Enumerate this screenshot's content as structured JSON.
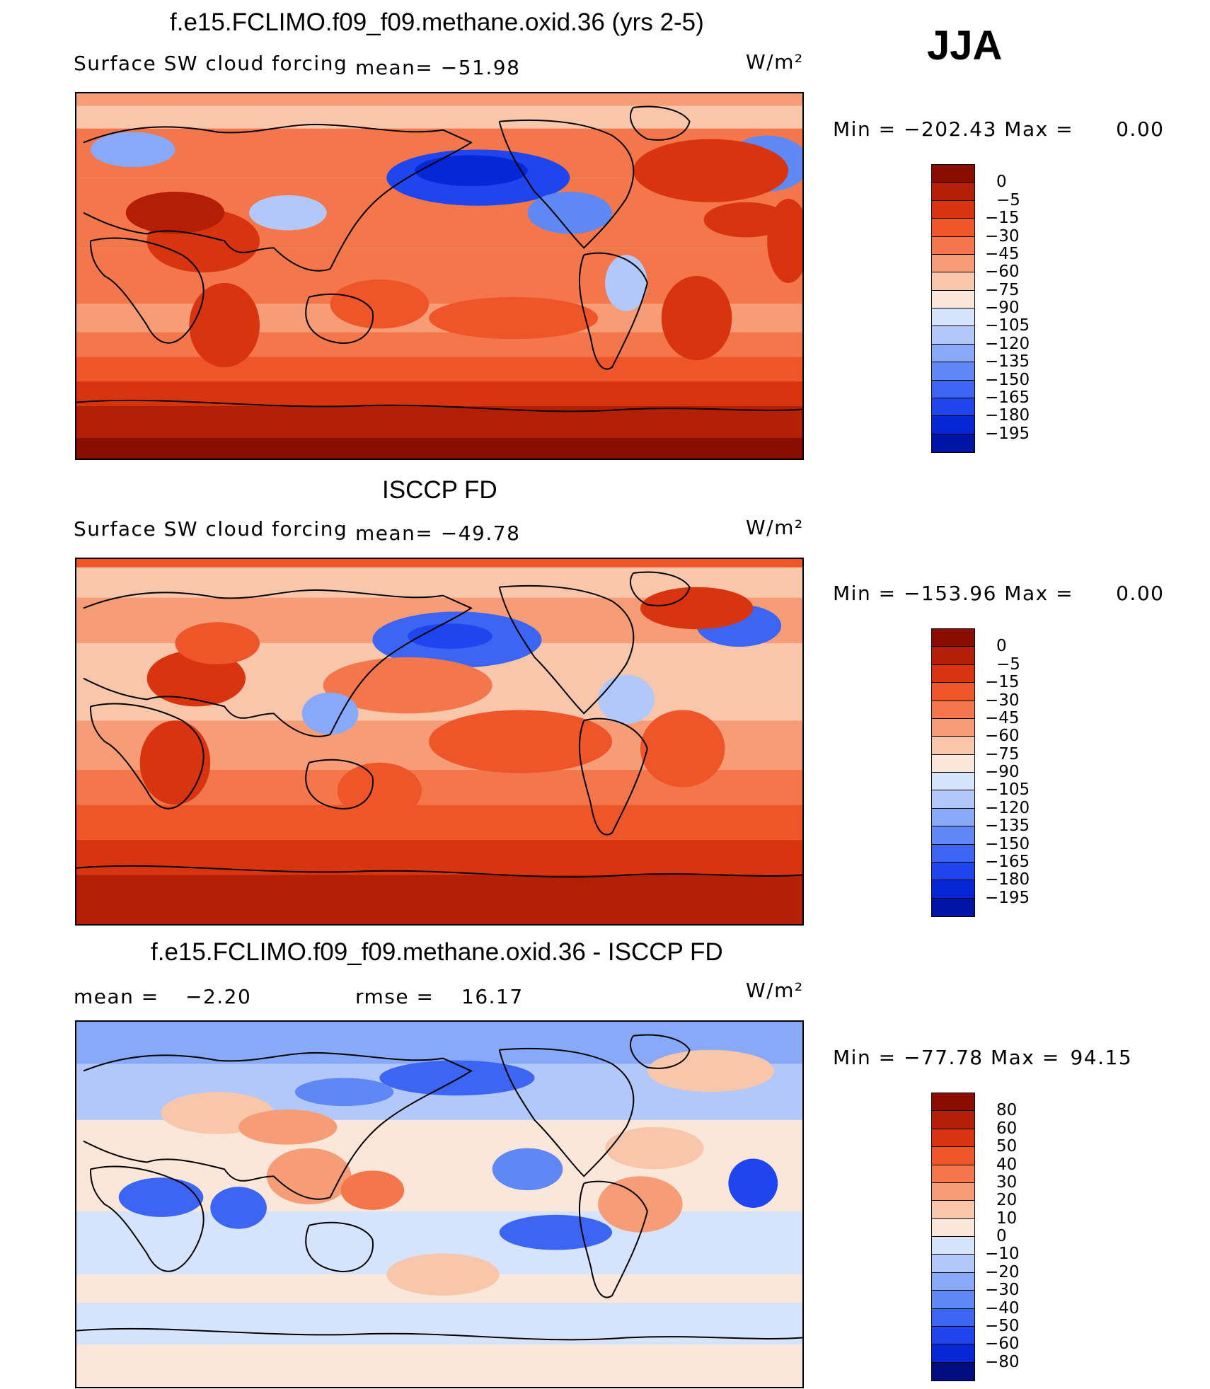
{
  "season": "JJA",
  "colors": {
    "cool": [
      "#000e7f",
      "#0014a8",
      "#0527d6",
      "#1f46ee",
      "#3b65f2",
      "#6088f5",
      "#88a8f8",
      "#b2c8fb",
      "#d5e3fd"
    ],
    "warm": [
      "#fbe7d9",
      "#f8c6aa",
      "#f69c76",
      "#f3774a",
      "#ee5528",
      "#d93410",
      "#b31e05",
      "#8a0b00"
    ],
    "border": "#000000",
    "bg": "#ffffff"
  },
  "chart_data": [
    {
      "type": "heatmap",
      "title": "f.e15.FCLIMO.f09_f09.methane.oxid.36 (yrs 2-5)",
      "variable": "Surface SW cloud forcing",
      "mean_text": "mean= −51.98",
      "units": "W/m²",
      "minmax": {
        "min_label": "Min",
        "min_value": "−202.43",
        "max_label": "Max",
        "max_value": "0.00"
      },
      "levels": [
        "0",
        "−5",
        "−15",
        "−30",
        "−45",
        "−60",
        "−75",
        "−90",
        "−105",
        "−120",
        "−135",
        "−150",
        "−165",
        "−180",
        "−195"
      ]
    },
    {
      "type": "heatmap",
      "title": "ISCCP FD",
      "variable": "Surface SW cloud forcing",
      "mean_text": "mean= −49.78",
      "units": "W/m²",
      "minmax": {
        "min_label": "Min",
        "min_value": "−153.96",
        "max_label": "Max",
        "max_value": "0.00"
      },
      "levels": [
        "0",
        "−5",
        "−15",
        "−30",
        "−45",
        "−60",
        "−75",
        "−90",
        "−105",
        "−120",
        "−135",
        "−150",
        "−165",
        "−180",
        "−195"
      ]
    },
    {
      "type": "heatmap",
      "title": "f.e15.FCLIMO.f09_f09.methane.oxid.36 - ISCCP FD",
      "mean_label": "mean =",
      "mean_value": "−2.20",
      "rmse_label": "rmse =",
      "rmse_value": "16.17",
      "units": "W/m²",
      "minmax": {
        "min_label": "Min",
        "min_value": "−77.78",
        "max_label": "Max",
        "max_value": "94.15"
      },
      "levels": [
        "80",
        "60",
        "50",
        "40",
        "30",
        "20",
        "10",
        "0",
        "−10",
        "−20",
        "−30",
        "−40",
        "−50",
        "−60",
        "−80"
      ]
    }
  ]
}
